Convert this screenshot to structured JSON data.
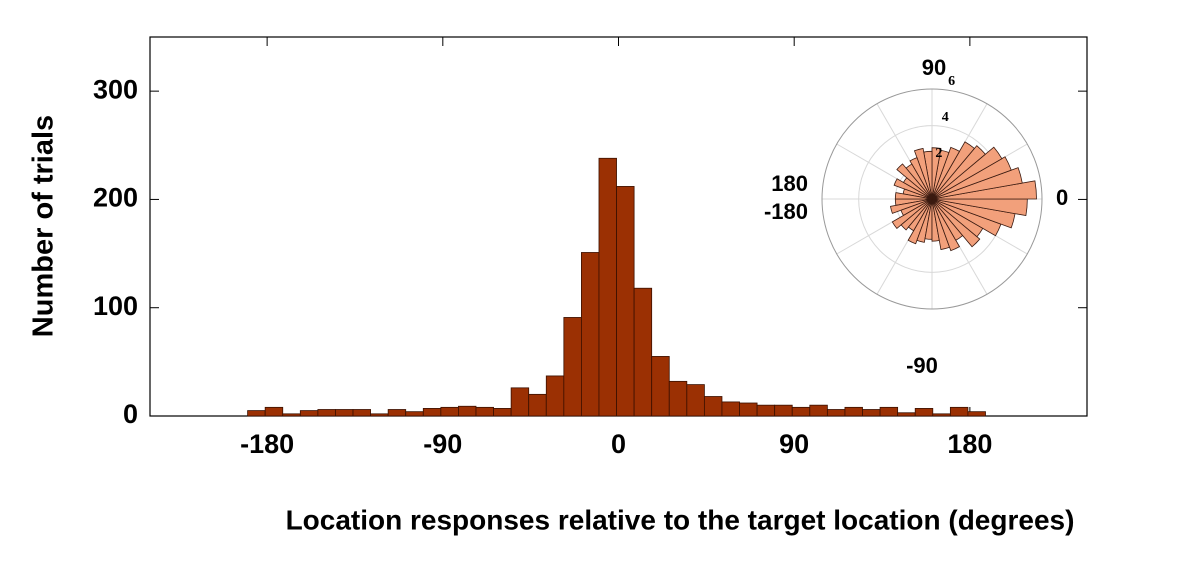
{
  "chart_data": [
    {
      "type": "histogram",
      "xlabel": "Location responses relative to the target location (degrees)",
      "ylabel": "Number of trials",
      "bins": [
        -190,
        -181,
        -172,
        -163,
        -154,
        -145,
        -136,
        -127,
        -118,
        -109,
        -100,
        -91,
        -82,
        -73,
        -64,
        -55,
        -46,
        -37,
        -28,
        -19,
        -10,
        -1,
        8,
        17,
        26,
        35,
        44,
        53,
        62,
        71,
        80,
        89,
        98,
        107,
        116,
        125,
        134,
        143,
        152,
        161,
        170,
        179,
        188
      ],
      "values": [
        5,
        8,
        2,
        5,
        6,
        6,
        6,
        2,
        6,
        4,
        7,
        8,
        9,
        8,
        7,
        26,
        20,
        37,
        91,
        151,
        238,
        212,
        118,
        55,
        32,
        29,
        18,
        13,
        12,
        10,
        10,
        8,
        10,
        6,
        8,
        6,
        8,
        3,
        7,
        2,
        8,
        4
      ],
      "color": "#9b3003",
      "edgecolor": "#3a1000",
      "xlim": [
        -240,
        240
      ],
      "ylim": [
        0,
        350
      ],
      "xticks": [
        -180,
        -90,
        0,
        90,
        180
      ],
      "yticks": [
        0,
        100,
        200,
        300
      ]
    },
    {
      "type": "rose",
      "theta": [
        -175,
        -165,
        -155,
        -145,
        -135,
        -125,
        -115,
        -105,
        -95,
        -85,
        -75,
        -65,
        -55,
        -45,
        -35,
        -25,
        -15,
        -5,
        5,
        15,
        25,
        35,
        45,
        55,
        65,
        75,
        85,
        95,
        105,
        115,
        125,
        135,
        145,
        155,
        165,
        175
      ],
      "values": [
        2.0,
        2.3,
        1.8,
        2.5,
        2.2,
        2.0,
        2.6,
        2.4,
        2.2,
        2.3,
        2.8,
        3.0,
        2.6,
        3.4,
        3.2,
        4.0,
        4.6,
        5.2,
        5.7,
        5.0,
        4.6,
        4.4,
        3.8,
        3.6,
        3.0,
        2.7,
        2.8,
        2.6,
        2.8,
        2.4,
        2.2,
        2.5,
        1.8,
        2.2,
        1.6,
        2.0
      ],
      "color": "#f2a07b",
      "edgecolor": "#3a1a10",
      "rlim": [
        0,
        6
      ],
      "rticks": [
        2,
        4,
        6
      ],
      "thetaticks": [
        90,
        0,
        180,
        -180,
        -90
      ]
    }
  ]
}
